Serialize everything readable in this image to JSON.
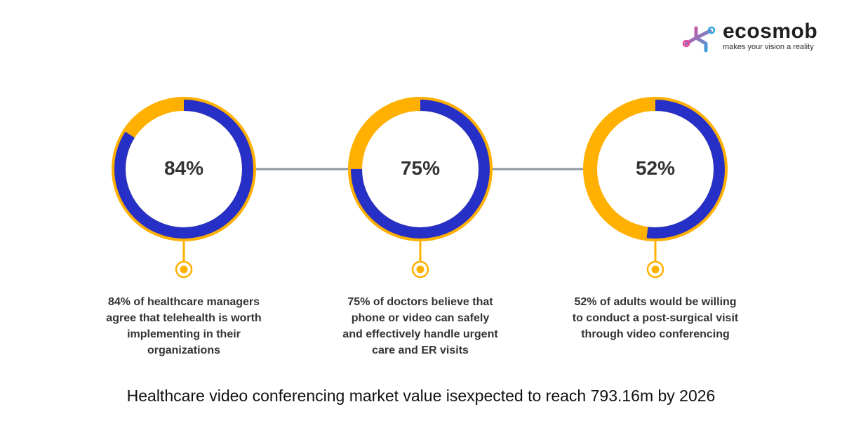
{
  "brand": {
    "name": "ecosmob",
    "tagline": "makes your vision a reality"
  },
  "colors": {
    "blue": "#2630c6",
    "orange": "#ffb000",
    "connector": "#8c959f",
    "text": "#333333"
  },
  "chart_data": {
    "type": "pie",
    "series": [
      {
        "value": 84,
        "label": "84%",
        "caption_lines": [
          "84% of healthcare managers",
          "agree that telehealth is worth",
          "implementing in their",
          "organizations"
        ]
      },
      {
        "value": 75,
        "label": "75%",
        "caption_lines": [
          "75% of doctors believe that",
          "phone or video can safely",
          "and effectively handle urgent",
          "care and ER visits"
        ]
      },
      {
        "value": 52,
        "label": "52%",
        "caption_lines": [
          "52% of adults would be willing",
          "to conduct a post-surgical visit",
          "through video conferencing"
        ]
      }
    ]
  },
  "footer": "Healthcare video conferencing market value isexpected to reach 793.16m by 2026"
}
